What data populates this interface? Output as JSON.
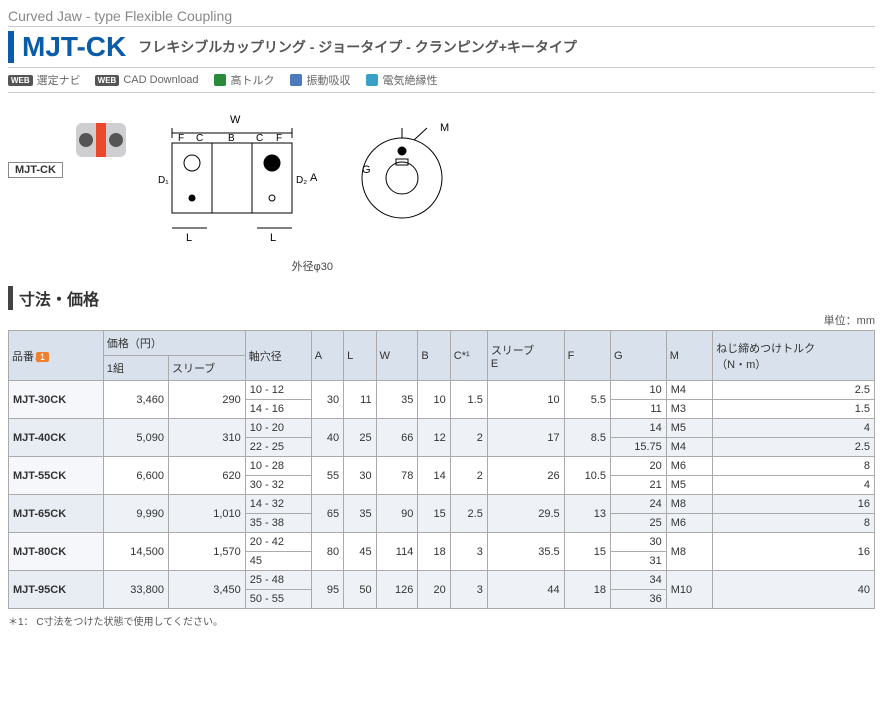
{
  "subtitle": "Curved Jaw - type Flexible Coupling",
  "code": "MJT-CK",
  "desc": "フレキシブルカップリング  -  ジョータイプ  -  クランピング+キータイプ",
  "features": [
    {
      "badge": "WEB",
      "text": "選定ナビ"
    },
    {
      "badge": "WEB",
      "text": "CAD Download"
    },
    {
      "icon": "torque",
      "color": "#2a8a3a",
      "text": "高トルク"
    },
    {
      "icon": "vib",
      "color": "#4a7ab8",
      "text": "振動吸収"
    },
    {
      "icon": "insul",
      "color": "#3aa0c8",
      "text": "電気絶縁性"
    }
  ],
  "diagram": {
    "tag": "MJT-CK",
    "labels": {
      "W": "W",
      "F": "F",
      "C": "C",
      "B": "B",
      "D1": "D₁",
      "D2": "D₂",
      "A": "A",
      "L": "L",
      "G": "G",
      "M": "M"
    },
    "caption": "外径φ30"
  },
  "section_title": "寸法・価格",
  "unit_label": "単位：mm",
  "table": {
    "headers": {
      "pn": "品番",
      "price": "価格（円）",
      "price_set": "1組",
      "price_sleeve": "スリーブ",
      "bore": "軸穴径",
      "A": "A",
      "L": "L",
      "W": "W",
      "B": "B",
      "C": "C*¹",
      "E": "スリーブ\nE",
      "F": "F",
      "G": "G",
      "M": "M",
      "torque": "ねじ締めつけトルク\n（N・m）"
    },
    "badge_text": "1"
  },
  "rows": [
    {
      "pn": "MJT-30CK",
      "set": "3,460",
      "sleeve": "290",
      "bore": [
        "10 - 12",
        "14 - 16"
      ],
      "A": "30",
      "L": "11",
      "W": "35",
      "B": "10",
      "C": "1.5",
      "E": "10",
      "F": "5.5",
      "G": [
        "10",
        "11"
      ],
      "M": [
        "M4",
        "M3"
      ],
      "torque": [
        "2.5",
        "1.5"
      ]
    },
    {
      "pn": "MJT-40CK",
      "set": "5,090",
      "sleeve": "310",
      "bore": [
        "10 - 20",
        "22 - 25"
      ],
      "A": "40",
      "L": "25",
      "W": "66",
      "B": "12",
      "C": "2",
      "E": "17",
      "F": "8.5",
      "G": [
        "14",
        "15.75"
      ],
      "M": [
        "M5",
        "M4"
      ],
      "torque": [
        "4",
        "2.5"
      ]
    },
    {
      "pn": "MJT-55CK",
      "set": "6,600",
      "sleeve": "620",
      "bore": [
        "10 - 28",
        "30 - 32"
      ],
      "A": "55",
      "L": "30",
      "W": "78",
      "B": "14",
      "C": "2",
      "E": "26",
      "F": "10.5",
      "G": [
        "20",
        "21"
      ],
      "M": [
        "M6",
        "M5"
      ],
      "torque": [
        "8",
        "4"
      ]
    },
    {
      "pn": "MJT-65CK",
      "set": "9,990",
      "sleeve": "1,010",
      "bore": [
        "14 - 32",
        "35 - 38"
      ],
      "A": "65",
      "L": "35",
      "W": "90",
      "B": "15",
      "C": "2.5",
      "E": "29.5",
      "F": "13",
      "G": [
        "24",
        "25"
      ],
      "M": [
        "M8",
        "M6"
      ],
      "torque": [
        "16",
        "8"
      ]
    },
    {
      "pn": "MJT-80CK",
      "set": "14,500",
      "sleeve": "1,570",
      "bore": [
        "20 - 42",
        "45"
      ],
      "A": "80",
      "L": "45",
      "W": "114",
      "B": "18",
      "C": "3",
      "E": "35.5",
      "F": "15",
      "G": [
        "30",
        "31"
      ],
      "M": [
        "M8",
        ""
      ],
      "torque": [
        "16",
        ""
      ]
    },
    {
      "pn": "MJT-95CK",
      "set": "33,800",
      "sleeve": "3,450",
      "bore": [
        "25 - 48",
        "50 - 55"
      ],
      "A": "95",
      "L": "50",
      "W": "126",
      "B": "20",
      "C": "3",
      "E": "44",
      "F": "18",
      "G": [
        "34",
        "36"
      ],
      "M": [
        "M10",
        ""
      ],
      "torque": [
        "40",
        ""
      ]
    }
  ],
  "footnote": "＊1：  C寸法をつけた状態で使用してください。"
}
